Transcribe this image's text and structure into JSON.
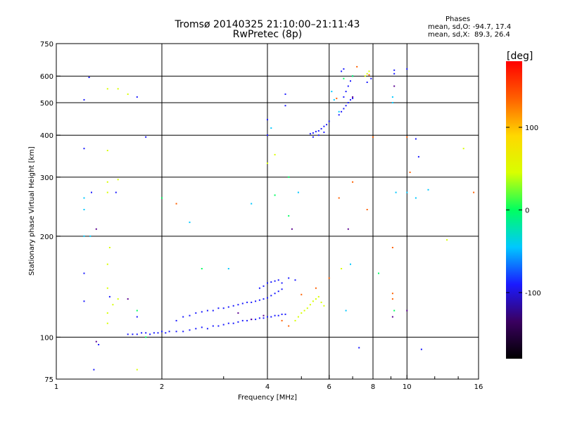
{
  "header": {
    "title_line1": "Tromsø 20140325 21:10:00–21:11:43",
    "title_line2": "RwPretec (8p)"
  },
  "phase_stats": {
    "heading": "Phases",
    "line_o": "mean, sd,O: -94.7, 17.4",
    "line_x": "mean, sd,X:  89.3, 26.4"
  },
  "chart_data": {
    "type": "scatter",
    "xlabel": "Frequency [MHz]",
    "ylabel": "Stationary phase Virtual Height [km]",
    "x_scale": "log",
    "y_scale": "log",
    "xlim": [
      1,
      16
    ],
    "ylim": [
      75,
      750
    ],
    "x_ticks": [
      1,
      2,
      4,
      6,
      8,
      10,
      16
    ],
    "x_tick_labels": [
      "1",
      "2",
      "4",
      "6",
      "8",
      "10",
      "16"
    ],
    "y_ticks": [
      75,
      100,
      200,
      300,
      400,
      500,
      600,
      750
    ],
    "y_tick_labels": [
      "75",
      "100",
      "200",
      "300",
      "400",
      "500",
      "600",
      "750"
    ],
    "grid": true,
    "colorbar": {
      "label": "[deg]",
      "range": [
        -180,
        180
      ],
      "ticks": [
        100,
        0,
        -100
      ],
      "tick_labels": [
        "100",
        "0",
        "-100"
      ],
      "colors": [
        "#000000",
        "#3a0060",
        "#1a1aff",
        "#00c8ff",
        "#00ff60",
        "#d8ff00",
        "#ffd800",
        "#ff6000",
        "#ff0000"
      ]
    },
    "series": [
      {
        "points": [
          [
            1.6,
            102
          ],
          [
            1.65,
            102
          ],
          [
            1.7,
            102
          ],
          [
            1.75,
            103
          ],
          [
            1.8,
            103
          ],
          [
            1.85,
            102
          ],
          [
            1.9,
            103
          ],
          [
            1.95,
            103
          ],
          [
            2.0,
            104
          ],
          [
            2.05,
            103
          ],
          [
            2.1,
            104
          ],
          [
            2.2,
            104
          ],
          [
            2.3,
            104
          ],
          [
            2.4,
            105
          ],
          [
            2.5,
            106
          ],
          [
            2.6,
            107
          ],
          [
            2.7,
            106
          ],
          [
            2.8,
            108
          ],
          [
            2.9,
            108
          ],
          [
            3.0,
            109
          ],
          [
            3.1,
            110
          ],
          [
            3.2,
            110
          ],
          [
            3.3,
            111
          ],
          [
            3.4,
            112
          ],
          [
            3.5,
            112
          ],
          [
            3.6,
            113
          ],
          [
            3.7,
            113
          ],
          [
            3.8,
            114
          ],
          [
            3.9,
            114
          ],
          [
            4.0,
            115
          ],
          [
            4.1,
            115
          ],
          [
            4.2,
            116
          ],
          [
            4.3,
            116
          ],
          [
            4.4,
            117
          ],
          [
            4.5,
            117
          ],
          [
            2.2,
            112
          ],
          [
            2.3,
            115
          ],
          [
            2.4,
            116
          ],
          [
            2.5,
            118
          ],
          [
            2.6,
            119
          ],
          [
            2.7,
            120
          ],
          [
            2.8,
            120
          ],
          [
            2.9,
            122
          ],
          [
            3.0,
            122
          ],
          [
            3.1,
            123
          ],
          [
            3.2,
            124
          ],
          [
            3.3,
            125
          ],
          [
            3.4,
            126
          ],
          [
            3.5,
            127
          ],
          [
            3.6,
            127
          ],
          [
            3.7,
            128
          ],
          [
            3.8,
            129
          ],
          [
            3.9,
            130
          ],
          [
            4.0,
            131
          ],
          [
            4.1,
            133
          ],
          [
            4.2,
            135
          ],
          [
            4.3,
            137
          ],
          [
            4.4,
            139
          ],
          [
            3.8,
            140
          ],
          [
            3.9,
            142
          ],
          [
            4.0,
            145
          ],
          [
            4.1,
            146
          ],
          [
            4.2,
            147
          ],
          [
            4.3,
            148
          ],
          [
            4.4,
            145
          ],
          [
            4.6,
            150
          ],
          [
            4.8,
            148
          ],
          [
            5.3,
            404
          ],
          [
            5.4,
            406
          ],
          [
            5.5,
            410
          ],
          [
            5.6,
            412
          ],
          [
            5.7,
            418
          ],
          [
            5.8,
            425
          ],
          [
            5.9,
            430
          ],
          [
            6.0,
            440
          ],
          [
            5.4,
            395
          ],
          [
            5.6,
            400
          ],
          [
            5.8,
            408
          ],
          [
            6.4,
            460
          ],
          [
            6.5,
            470
          ],
          [
            6.6,
            480
          ],
          [
            6.7,
            490
          ],
          [
            6.8,
            500
          ],
          [
            6.9,
            510
          ],
          [
            7.0,
            515
          ],
          [
            6.6,
            520
          ],
          [
            6.7,
            540
          ],
          [
            6.8,
            560
          ],
          [
            6.9,
            580
          ],
          [
            7.0,
            600
          ],
          [
            6.5,
            620
          ],
          [
            6.6,
            630
          ],
          [
            9.2,
            625
          ],
          [
            9.2,
            610
          ],
          [
            10.0,
            630
          ],
          [
            7.7,
            575
          ],
          [
            7.9,
            590
          ],
          [
            1.28,
            80
          ],
          [
            1.32,
            95
          ],
          [
            1.42,
            132
          ],
          [
            1.7,
            115
          ],
          [
            1.2,
            128
          ],
          [
            1.2,
            155
          ],
          [
            1.24,
            595
          ],
          [
            1.2,
            510
          ],
          [
            1.7,
            520
          ],
          [
            1.8,
            395
          ],
          [
            1.2,
            365
          ],
          [
            1.26,
            270
          ],
          [
            1.48,
            270
          ],
          [
            4.0,
            445
          ],
          [
            4.0,
            400
          ],
          [
            4.5,
            530
          ],
          [
            4.5,
            490
          ],
          [
            7.3,
            93
          ],
          [
            10.8,
            345
          ],
          [
            10.6,
            390
          ],
          [
            11.0,
            92
          ]
        ],
        "color": "#1a1aff"
      },
      {
        "points": [
          [
            4.8,
            112
          ],
          [
            4.9,
            115
          ],
          [
            5.0,
            118
          ],
          [
            5.1,
            120
          ],
          [
            5.2,
            122
          ],
          [
            5.3,
            125
          ],
          [
            5.4,
            128
          ],
          [
            5.5,
            130
          ],
          [
            5.6,
            132
          ],
          [
            5.7,
            127
          ],
          [
            5.8,
            124
          ],
          [
            1.4,
            110
          ],
          [
            1.4,
            118
          ],
          [
            1.45,
            125
          ],
          [
            1.5,
            130
          ],
          [
            1.4,
            140
          ],
          [
            1.4,
            165
          ],
          [
            1.42,
            185
          ],
          [
            1.4,
            270
          ],
          [
            1.4,
            290
          ],
          [
            1.5,
            295
          ],
          [
            1.4,
            360
          ],
          [
            1.4,
            550
          ],
          [
            1.5,
            550
          ],
          [
            1.6,
            530
          ],
          [
            1.7,
            80
          ],
          [
            7.6,
            600
          ],
          [
            7.7,
            610
          ],
          [
            7.8,
            620
          ],
          [
            14.5,
            365
          ],
          [
            13.0,
            195
          ],
          [
            6.5,
            160
          ],
          [
            4.2,
            350
          ],
          [
            4.0,
            330
          ]
        ],
        "color": "#d8ff00"
      },
      {
        "points": [
          [
            4.4,
            112
          ],
          [
            4.6,
            108
          ],
          [
            5.0,
            134
          ],
          [
            5.5,
            140
          ],
          [
            6.0,
            150
          ],
          [
            7.2,
            640
          ],
          [
            6.3,
            515
          ],
          [
            7.7,
            240
          ],
          [
            9.1,
            185
          ],
          [
            9.1,
            135
          ],
          [
            9.1,
            130
          ],
          [
            10.0,
            395
          ],
          [
            10.2,
            310
          ],
          [
            8.0,
            395
          ],
          [
            6.4,
            260
          ],
          [
            2.2,
            250
          ],
          [
            15.5,
            270
          ],
          [
            7.8,
            605
          ],
          [
            7.0,
            290
          ]
        ],
        "color": "#ff6000"
      },
      {
        "points": [
          [
            1.2,
            200
          ],
          [
            1.2,
            240
          ],
          [
            1.2,
            260
          ],
          [
            1.25,
            200
          ],
          [
            2.4,
            220
          ],
          [
            3.6,
            250
          ],
          [
            6.1,
            540
          ],
          [
            6.2,
            510
          ],
          [
            6.4,
            470
          ],
          [
            9.1,
            520
          ],
          [
            9.1,
            500
          ],
          [
            4.9,
            270
          ],
          [
            6.7,
            120
          ],
          [
            6.9,
            165
          ],
          [
            3.1,
            160
          ],
          [
            9.3,
            270
          ],
          [
            10.0,
            270
          ],
          [
            11.5,
            275
          ],
          [
            10.6,
            260
          ],
          [
            4.1,
            420
          ]
        ],
        "color": "#00c8ff"
      },
      {
        "points": [
          [
            1.8,
            100
          ],
          [
            2.6,
            160
          ],
          [
            2.0,
            260
          ],
          [
            4.6,
            300
          ],
          [
            4.6,
            230
          ],
          [
            6.6,
            590
          ],
          [
            7.0,
            600
          ],
          [
            9.2,
            120
          ],
          [
            8.3,
            155
          ],
          [
            1.7,
            120
          ],
          [
            4.2,
            265
          ]
        ],
        "color": "#00ff60"
      },
      {
        "points": [
          [
            1.3,
            97
          ],
          [
            1.3,
            210
          ],
          [
            1.6,
            130
          ],
          [
            4.7,
            210
          ],
          [
            6.8,
            210
          ],
          [
            7.0,
            520
          ],
          [
            3.3,
            118
          ],
          [
            3.6,
            113
          ],
          [
            3.9,
            116
          ],
          [
            9.1,
            115
          ],
          [
            10.0,
            120
          ],
          [
            9.2,
            560
          ]
        ],
        "color": "#5a0090"
      }
    ]
  }
}
